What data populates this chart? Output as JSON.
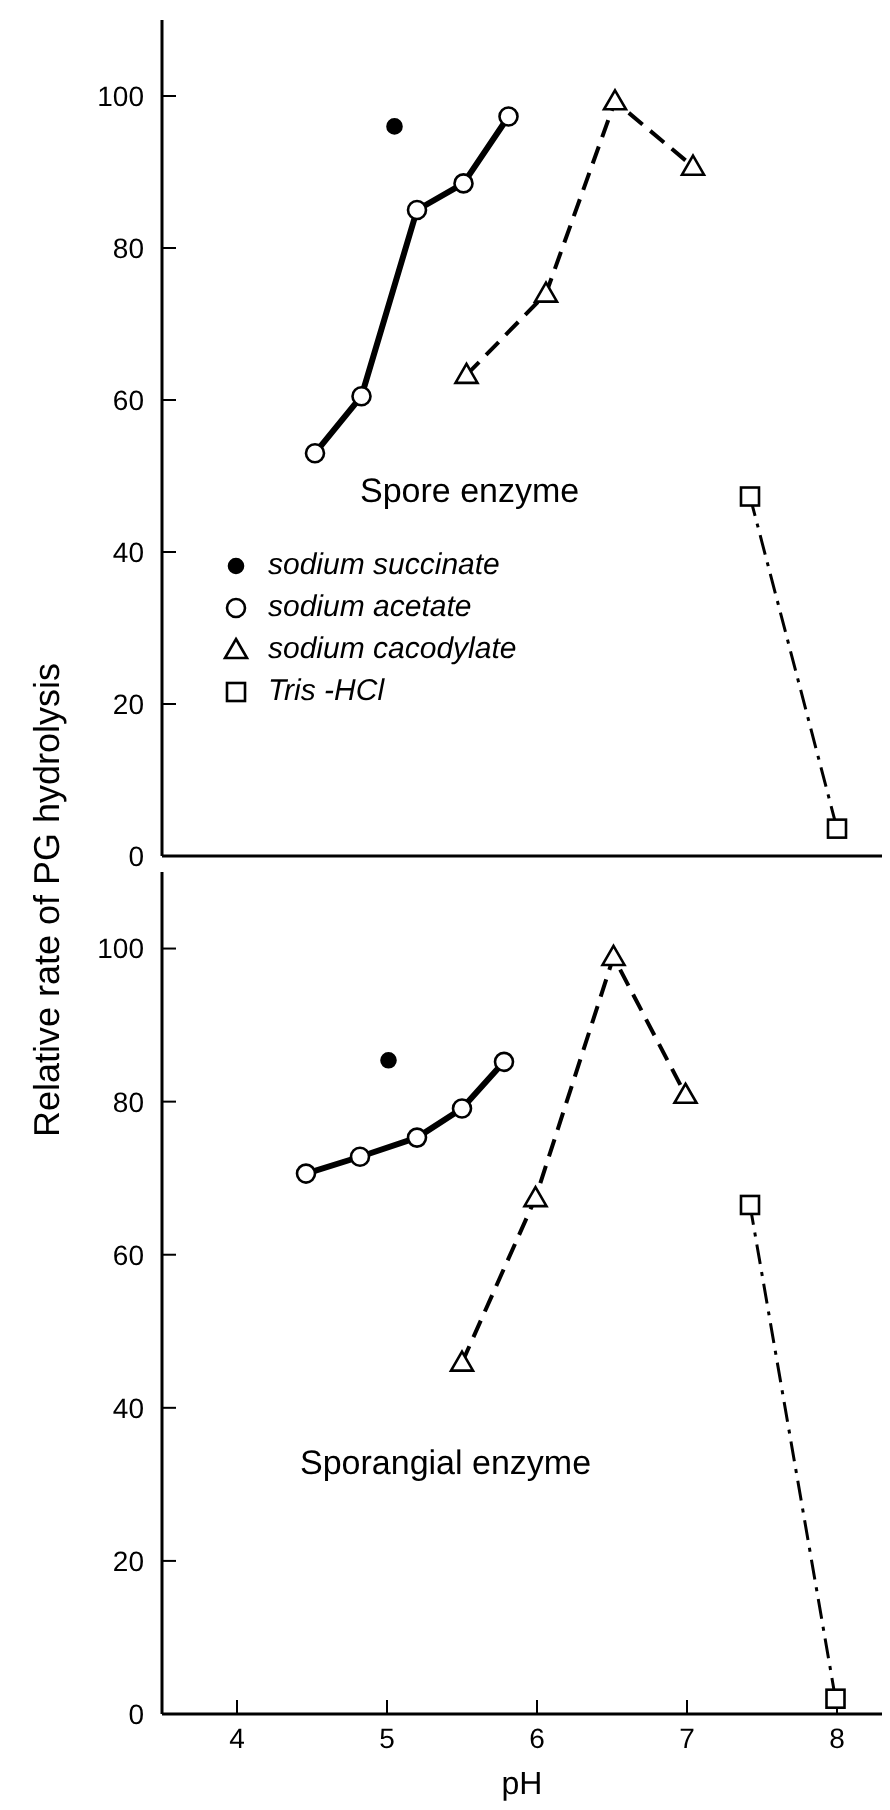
{
  "chart_data": [
    {
      "type": "line",
      "ylabel": "Relative rate of PG hydrolysis",
      "annotations": [
        "Spore enzyme"
      ],
      "xlim": [
        3.5,
        8.3
      ],
      "xticks": [
        4,
        5,
        6,
        7,
        8
      ],
      "ylim": [
        0,
        110
      ],
      "yticks": [
        0,
        20,
        40,
        60,
        80,
        100
      ],
      "tick_labels": "y",
      "legend": "left",
      "grid": false,
      "series": [
        {
          "name": "sodium succinate",
          "type": "scatter",
          "marker": "circle",
          "color": "#000000",
          "x": [
            5.05
          ],
          "values": [
            96
          ]
        },
        {
          "name": "sodium acetate",
          "marker": "circle",
          "line_style": "solid",
          "color": "#000000",
          "x": [
            4.52,
            4.83,
            5.2,
            5.51,
            5.81
          ],
          "values": [
            53,
            60.5,
            85,
            88.5,
            97.3
          ]
        },
        {
          "name": "sodium cacodylate",
          "marker": "triangle",
          "line_style": "dashed",
          "color": "#000000",
          "x": [
            5.53,
            6.06,
            6.52,
            7.04
          ],
          "values": [
            63.3,
            74,
            99.3,
            90.7
          ]
        },
        {
          "name": "Tris -HCl",
          "marker": "square",
          "line_style": "dashdot",
          "color": "#000000",
          "x": [
            7.42,
            8.0
          ],
          "values": [
            47.3,
            3.6
          ]
        }
      ]
    },
    {
      "type": "line",
      "xlabel": "pH",
      "annotations": [
        "Sporangial enzyme"
      ],
      "xlim": [
        3.5,
        8.3
      ],
      "xticks": [
        4,
        5,
        6,
        7,
        8
      ],
      "ylim": [
        0,
        110
      ],
      "yticks": [
        0,
        20,
        40,
        60,
        80,
        100
      ],
      "grid": false,
      "series": [
        {
          "type": "scatter",
          "marker": "circle",
          "color": "#000000",
          "x": [
            5.01
          ],
          "values": [
            85.4
          ]
        },
        {
          "marker": "circle",
          "line_style": "solid",
          "color": "#000000",
          "x": [
            4.46,
            4.82,
            5.2,
            5.5,
            5.78
          ],
          "values": [
            70.6,
            72.8,
            75.3,
            79.1,
            85.2
          ]
        },
        {
          "marker": "triangle",
          "line_style": "dashed",
          "color": "#000000",
          "x": [
            5.5,
            5.99,
            6.51,
            6.99
          ],
          "values": [
            45.9,
            67.4,
            98.9,
            80.9
          ]
        },
        {
          "marker": "square",
          "line_style": "dashdot",
          "color": "#000000",
          "x": [
            7.42,
            7.99
          ],
          "values": [
            66.5,
            2.0
          ]
        }
      ]
    }
  ]
}
